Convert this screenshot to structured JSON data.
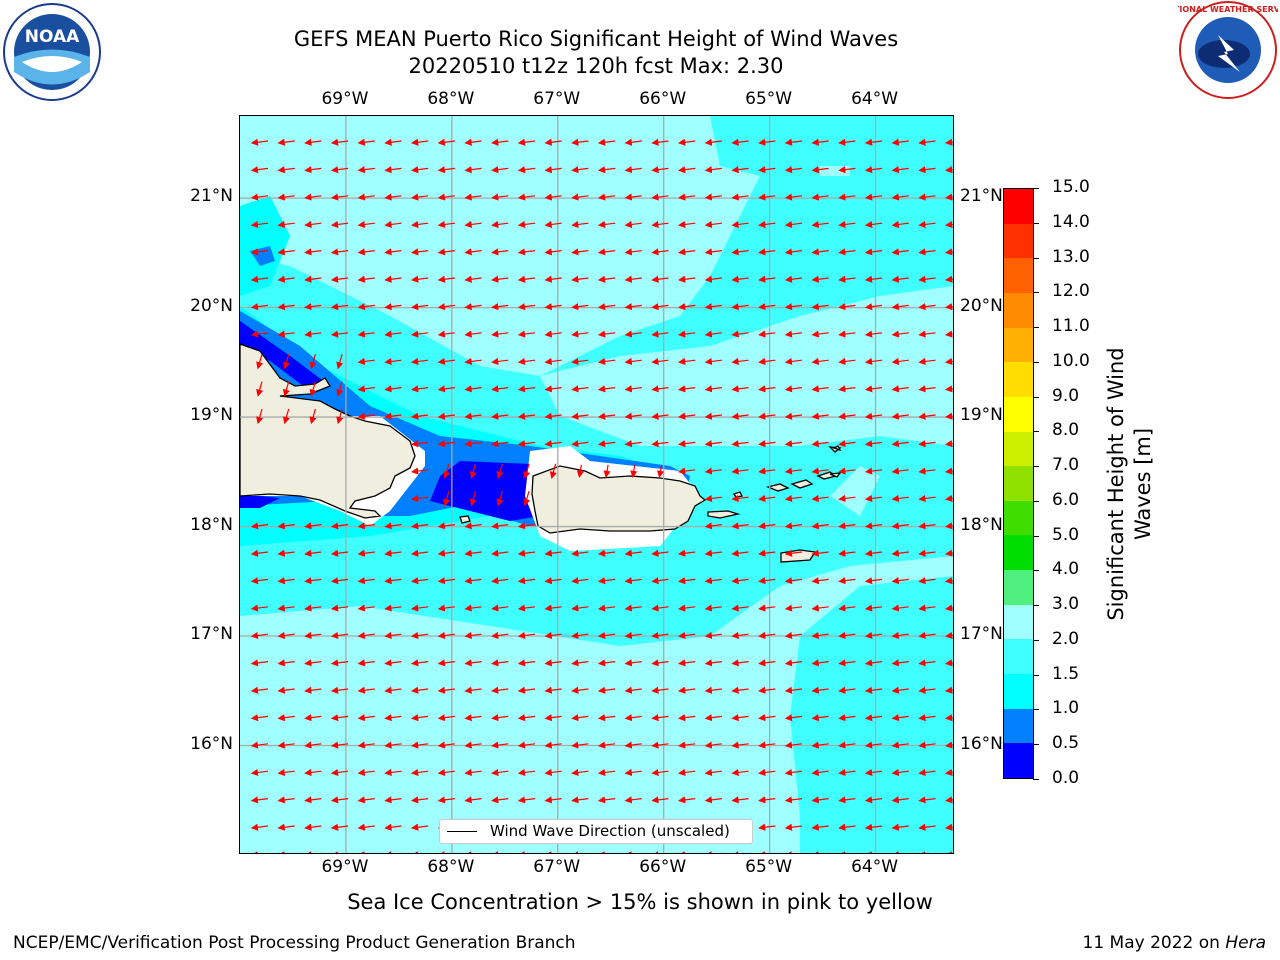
{
  "header": {
    "title_line1": "GEFS MEAN Puerto Rico Significant Height of Wind Waves",
    "title_line2": "20220510 t12z 120h fcst   Max: 2.30",
    "noaa_logo_text": "NOAA",
    "nws_logo_text": "NATIONAL WEATHER SERVICE"
  },
  "map": {
    "lon_ticks": [
      "69°W",
      "68°W",
      "67°W",
      "66°W",
      "65°W",
      "64°W"
    ],
    "lat_ticks": [
      "21°N",
      "20°N",
      "19°N",
      "18°N",
      "17°N",
      "16°N"
    ],
    "lon_values": [
      -69,
      -68,
      -67,
      -66,
      -65,
      -64
    ],
    "lat_values": [
      21,
      20,
      19,
      18,
      17,
      16
    ],
    "lon_range": [
      -70,
      -63.25
    ],
    "lat_range": [
      15,
      21.75
    ],
    "ocean_color": "#00ffff",
    "land_color": "#efeedf",
    "arrow_color": "#ff0000",
    "grid": true,
    "wave_direction": "toward west (easterly wind waves), southerly near Hispaniola coast",
    "legend": "Wind Wave Direction (unscaled)",
    "legend_placement": "bottom-center",
    "land_labels": [
      "Hispaniola",
      "Puerto Rico",
      "Virgin Islands"
    ]
  },
  "colorbar": {
    "title_line1": "Significant Height of Wind",
    "title_line2": "Waves [m]",
    "labels": [
      "15.0",
      "14.0",
      "13.0",
      "12.0",
      "11.0",
      "10.0",
      "9.0",
      "8.0",
      "7.0",
      "6.0",
      "5.0",
      "4.0",
      "3.0",
      "2.0",
      "1.5",
      "1.0",
      "0.5",
      "0.0"
    ],
    "levels": [
      0.0,
      0.5,
      1.0,
      1.5,
      2.0,
      3.0,
      4.0,
      5.0,
      6.0,
      7.0,
      8.0,
      9.0,
      10.0,
      11.0,
      12.0,
      13.0,
      14.0,
      15.0
    ],
    "colors": [
      "#0000ff",
      "#0080ff",
      "#00ffff",
      "#40ffff",
      "#a0ffff",
      "#50f080",
      "#00dd00",
      "#40dd00",
      "#90e000",
      "#ccf000",
      "#ffff00",
      "#ffdd00",
      "#ffb000",
      "#ff8c00",
      "#ff6000",
      "#ff3000",
      "#ff0000"
    ]
  },
  "footer": {
    "sea_ice_note": "Sea Ice Concentration > 15% is shown in pink to yellow",
    "branch": "NCEP/EMC/Verification Post Processing Product Generation Branch",
    "date": "11 May 2022 on ",
    "machine": "Hera"
  }
}
